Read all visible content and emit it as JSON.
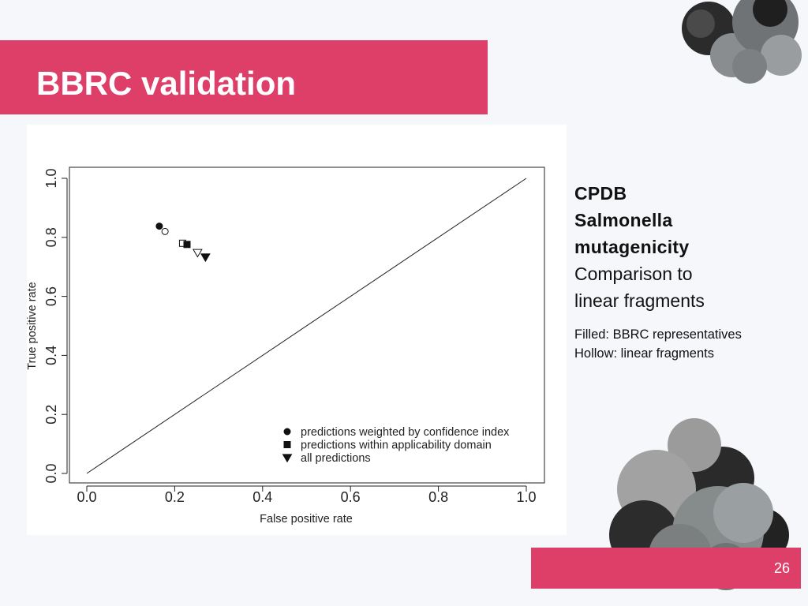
{
  "slide": {
    "title": "BBRC validation",
    "page_number": "26"
  },
  "side_panel": {
    "heading_lines": [
      "CPDB",
      "Salmonella",
      "mutagenicity"
    ],
    "subtitle_lines": [
      "Comparison to",
      "linear fragments"
    ],
    "notes": [
      "Filled: BBRC representatives",
      "Hollow: linear fragments"
    ]
  },
  "colors": {
    "accent": "#dd3f69",
    "background": "#f5f7fa",
    "text": "#111111"
  },
  "chart_data": {
    "type": "scatter",
    "xlabel": "False positive rate",
    "ylabel": "True positive rate",
    "xlim": [
      0.0,
      1.0
    ],
    "ylim": [
      0.0,
      1.0
    ],
    "x_ticks": [
      "0.0",
      "0.2",
      "0.4",
      "0.6",
      "0.8",
      "1.0"
    ],
    "y_ticks": [
      "0.0",
      "0.2",
      "0.4",
      "0.6",
      "0.8",
      "1.0"
    ],
    "diagonal": [
      [
        0.0,
        0.0
      ],
      [
        1.0,
        1.0
      ]
    ],
    "grid": false,
    "legend_position": "bottom-right",
    "legend": [
      {
        "marker": "circle",
        "label": "predictions weighted by confidence index"
      },
      {
        "marker": "square",
        "label": "predictions within applicability domain"
      },
      {
        "marker": "triangle-down",
        "label": "all predictions"
      }
    ],
    "series": [
      {
        "marker": "circle",
        "fill": "filled",
        "x": 0.165,
        "y": 0.838
      },
      {
        "marker": "circle",
        "fill": "hollow",
        "x": 0.178,
        "y": 0.82
      },
      {
        "marker": "square",
        "fill": "hollow",
        "x": 0.218,
        "y": 0.78
      },
      {
        "marker": "square",
        "fill": "filled",
        "x": 0.228,
        "y": 0.776
      },
      {
        "marker": "triangle-down",
        "fill": "hollow",
        "x": 0.252,
        "y": 0.748
      },
      {
        "marker": "triangle-down",
        "fill": "filled",
        "x": 0.27,
        "y": 0.733
      }
    ]
  }
}
